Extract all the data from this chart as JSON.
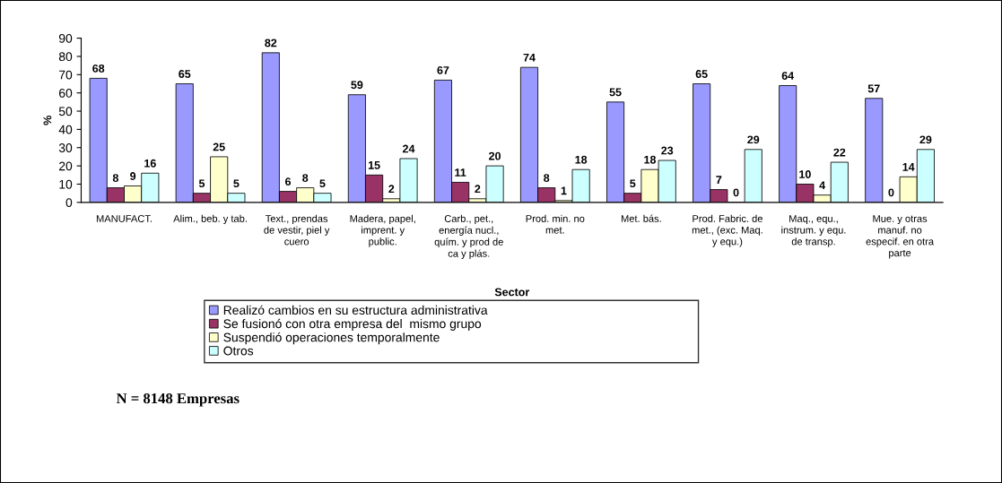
{
  "chart_data": {
    "type": "bar",
    "xlabel": "Sector",
    "ylabel": "%",
    "categories": [
      "MANUFACT.",
      "Alim., beb. y tab.",
      "Text., prendas\nde vestir, piel y\ncuero",
      "Madera, papel,\nimprent. y\npublic.",
      "Carb., pet.,\nenergía nucl.,\nquím. y prod de\nca y plás.",
      "Prod. min. no\nmet.",
      "Met. bás.",
      "Prod. Fabric. de\nmet., (exc. Maq.\ny equ.)",
      "Maq., equ.,\ninstrum. y equ.\nde transp.",
      "Mue. y otras\nmanuf. no\nespecif. en otra\nparte"
    ],
    "series": [
      {
        "name": "Realizó cambios en su estructura administrativa",
        "color": "#9999ff",
        "values": [
          68,
          65,
          82,
          59,
          67,
          74,
          55,
          65,
          64,
          57
        ]
      },
      {
        "name": "Se fusionó con otra empresa del  mismo grupo",
        "color": "#993366",
        "values": [
          8,
          5,
          6,
          15,
          11,
          8,
          5,
          7,
          10,
          0
        ]
      },
      {
        "name": "Suspendió operaciones temporalmente",
        "color": "#ffffcc",
        "values": [
          9,
          25,
          8,
          2,
          2,
          1,
          18,
          0,
          4,
          14
        ]
      },
      {
        "name": "Otros",
        "color": "#ccffff",
        "values": [
          16,
          5,
          5,
          24,
          20,
          18,
          23,
          29,
          22,
          29
        ]
      }
    ],
    "ylim": [
      0,
      90
    ],
    "yticks": [
      0,
      10,
      20,
      30,
      40,
      50,
      60,
      70,
      80,
      90
    ],
    "grid": false,
    "legend": "bottom",
    "data_labels": true,
    "annotations": [
      "N = 8148 Empresas"
    ]
  }
}
